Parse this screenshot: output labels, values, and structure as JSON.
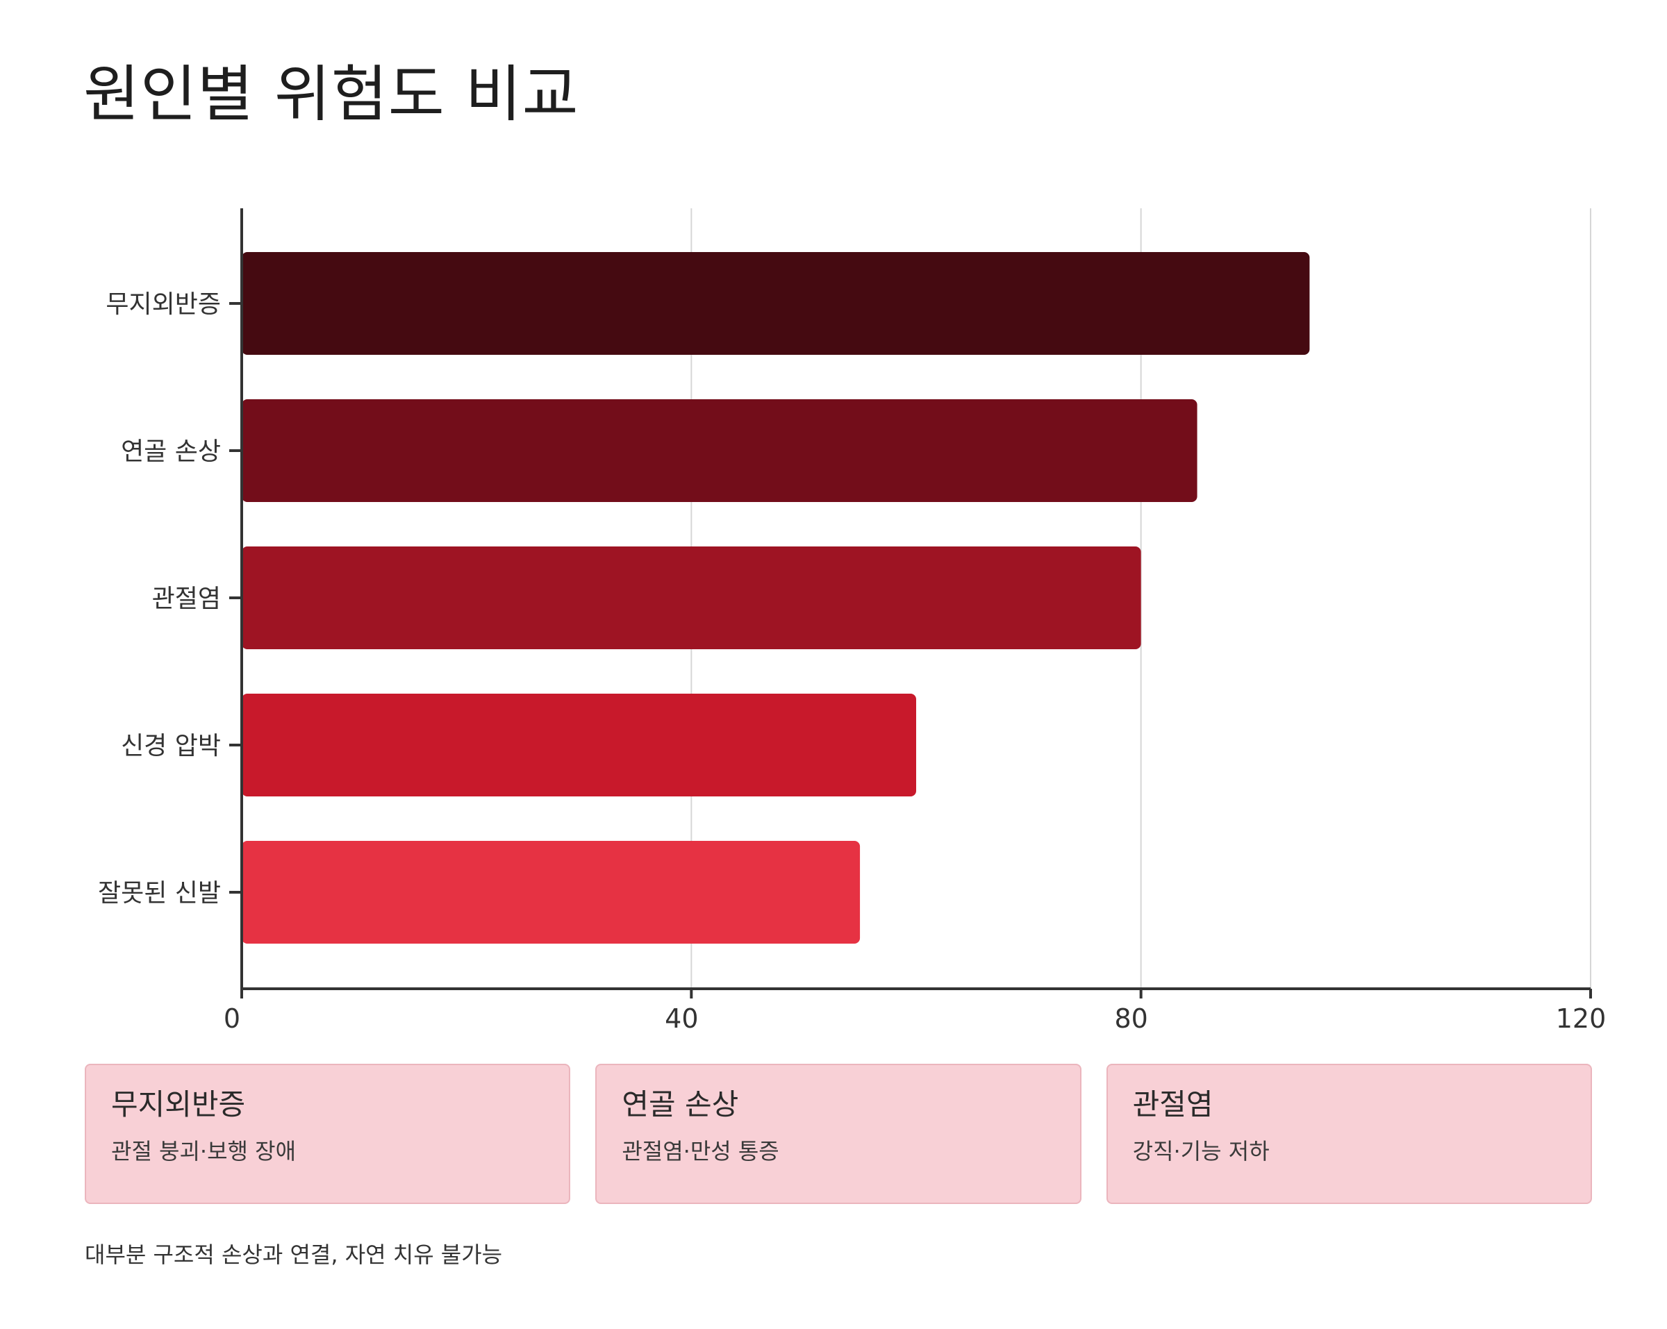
{
  "title": "원인별 위험도 비교",
  "chart_data": {
    "type": "bar",
    "orientation": "horizontal",
    "title": "원인별 위험도 비교",
    "xlabel": "",
    "ylabel": "",
    "categories": [
      "무지외반증",
      "연골 손상",
      "관절염",
      "신경 압박",
      "잘못된 신발"
    ],
    "values": [
      95,
      85,
      80,
      60,
      55
    ],
    "colors": [
      "#450a11",
      "#730d1a",
      "#9e1423",
      "#c8192b",
      "#e63243"
    ],
    "xlim": [
      0,
      120
    ],
    "xticks": [
      0,
      40,
      80,
      120
    ],
    "grid": "vertical"
  },
  "cards": [
    {
      "title": "무지외반증",
      "desc": "관절 붕괴·보행 장애"
    },
    {
      "title": "연골 손상",
      "desc": "관절염·만성 통증"
    },
    {
      "title": "관절염",
      "desc": "강직·기능 저하"
    }
  ],
  "footnote": "대부분 구조적 손상과 연결, 자연 치유 불가능"
}
